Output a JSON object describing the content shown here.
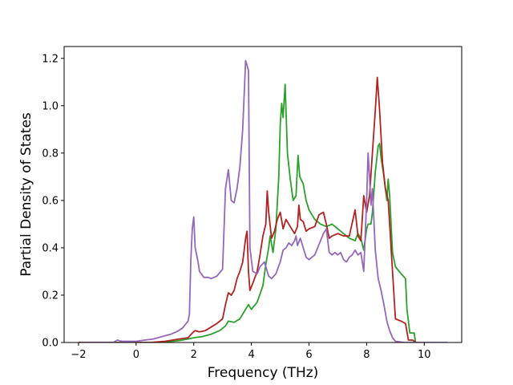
{
  "chart_data": {
    "type": "line",
    "title": "",
    "xlabel": "Frequency (THz)",
    "ylabel": "Partial Density of States",
    "xlim": [
      -2.5,
      11.3
    ],
    "ylim": [
      0,
      1.25
    ],
    "xticks": [
      -2,
      0,
      2,
      4,
      6,
      8,
      10
    ],
    "xtick_labels": [
      "−2",
      "0",
      "2",
      "4",
      "6",
      "8",
      "10"
    ],
    "yticks": [
      0.0,
      0.2,
      0.4,
      0.6,
      0.8,
      1.0,
      1.2
    ],
    "ytick_labels": [
      "0.0",
      "0.2",
      "0.4",
      "0.6",
      "0.8",
      "1.0",
      "1.2"
    ],
    "grid": false,
    "series": [
      {
        "color": "#2ca02c",
        "points": [
          [
            -2.0,
            0
          ],
          [
            0.5,
            0
          ],
          [
            1.0,
            0.002
          ],
          [
            1.5,
            0.008
          ],
          [
            1.8,
            0.015
          ],
          [
            2.0,
            0.02
          ],
          [
            2.3,
            0.025
          ],
          [
            2.6,
            0.035
          ],
          [
            2.9,
            0.05
          ],
          [
            3.1,
            0.07
          ],
          [
            3.2,
            0.09
          ],
          [
            3.4,
            0.085
          ],
          [
            3.6,
            0.1
          ],
          [
            3.8,
            0.14
          ],
          [
            3.9,
            0.16
          ],
          [
            4.0,
            0.14
          ],
          [
            4.2,
            0.17
          ],
          [
            4.4,
            0.24
          ],
          [
            4.5,
            0.33
          ],
          [
            4.6,
            0.4
          ],
          [
            4.65,
            0.45
          ],
          [
            4.75,
            0.38
          ],
          [
            4.85,
            0.48
          ],
          [
            4.95,
            0.7
          ],
          [
            5.0,
            0.92
          ],
          [
            5.05,
            1.01
          ],
          [
            5.1,
            0.95
          ],
          [
            5.17,
            1.09
          ],
          [
            5.25,
            0.8
          ],
          [
            5.35,
            0.69
          ],
          [
            5.45,
            0.6
          ],
          [
            5.55,
            0.62
          ],
          [
            5.62,
            0.79
          ],
          [
            5.68,
            0.7
          ],
          [
            5.8,
            0.67
          ],
          [
            5.9,
            0.6
          ],
          [
            6.0,
            0.56
          ],
          [
            6.2,
            0.52
          ],
          [
            6.4,
            0.5
          ],
          [
            6.6,
            0.49
          ],
          [
            6.8,
            0.5
          ],
          [
            7.0,
            0.48
          ],
          [
            7.2,
            0.46
          ],
          [
            7.4,
            0.44
          ],
          [
            7.6,
            0.43
          ],
          [
            7.7,
            0.46
          ],
          [
            7.8,
            0.44
          ],
          [
            7.9,
            0.39
          ],
          [
            8.0,
            0.48
          ],
          [
            8.05,
            0.5
          ],
          [
            8.15,
            0.5
          ],
          [
            8.2,
            0.55
          ],
          [
            8.3,
            0.72
          ],
          [
            8.4,
            0.83
          ],
          [
            8.45,
            0.84
          ],
          [
            8.5,
            0.78
          ],
          [
            8.6,
            0.7
          ],
          [
            8.7,
            0.6
          ],
          [
            8.75,
            0.69
          ],
          [
            8.8,
            0.62
          ],
          [
            8.9,
            0.38
          ],
          [
            9.0,
            0.32
          ],
          [
            9.2,
            0.29
          ],
          [
            9.35,
            0.27
          ],
          [
            9.4,
            0.14
          ],
          [
            9.5,
            0.04
          ],
          [
            9.65,
            0.04
          ],
          [
            9.7,
            0.0
          ],
          [
            9.85,
            0.0
          ]
        ]
      },
      {
        "color": "#b22222",
        "points": [
          [
            -2.0,
            0
          ],
          [
            0.5,
            0
          ],
          [
            1.0,
            0.005
          ],
          [
            1.5,
            0.015
          ],
          [
            1.8,
            0.02
          ],
          [
            1.95,
            0.04
          ],
          [
            2.05,
            0.05
          ],
          [
            2.2,
            0.045
          ],
          [
            2.4,
            0.05
          ],
          [
            2.6,
            0.065
          ],
          [
            2.8,
            0.08
          ],
          [
            3.0,
            0.1
          ],
          [
            3.1,
            0.16
          ],
          [
            3.2,
            0.21
          ],
          [
            3.3,
            0.2
          ],
          [
            3.4,
            0.22
          ],
          [
            3.5,
            0.27
          ],
          [
            3.6,
            0.3
          ],
          [
            3.7,
            0.34
          ],
          [
            3.8,
            0.44
          ],
          [
            3.85,
            0.47
          ],
          [
            3.9,
            0.3
          ],
          [
            3.95,
            0.22
          ],
          [
            4.05,
            0.25
          ],
          [
            4.2,
            0.3
          ],
          [
            4.3,
            0.37
          ],
          [
            4.4,
            0.45
          ],
          [
            4.5,
            0.5
          ],
          [
            4.55,
            0.64
          ],
          [
            4.6,
            0.55
          ],
          [
            4.7,
            0.44
          ],
          [
            4.8,
            0.47
          ],
          [
            4.9,
            0.52
          ],
          [
            5.0,
            0.55
          ],
          [
            5.1,
            0.48
          ],
          [
            5.2,
            0.52
          ],
          [
            5.3,
            0.5
          ],
          [
            5.4,
            0.48
          ],
          [
            5.5,
            0.46
          ],
          [
            5.6,
            0.49
          ],
          [
            5.65,
            0.58
          ],
          [
            5.7,
            0.52
          ],
          [
            5.8,
            0.51
          ],
          [
            5.9,
            0.47
          ],
          [
            6.0,
            0.48
          ],
          [
            6.2,
            0.49
          ],
          [
            6.35,
            0.54
          ],
          [
            6.5,
            0.55
          ],
          [
            6.6,
            0.5
          ],
          [
            6.7,
            0.44
          ],
          [
            6.8,
            0.45
          ],
          [
            7.0,
            0.46
          ],
          [
            7.2,
            0.45
          ],
          [
            7.4,
            0.45
          ],
          [
            7.6,
            0.56
          ],
          [
            7.7,
            0.45
          ],
          [
            7.8,
            0.43
          ],
          [
            7.9,
            0.62
          ],
          [
            8.0,
            0.55
          ],
          [
            8.1,
            0.62
          ],
          [
            8.2,
            0.8
          ],
          [
            8.3,
            0.98
          ],
          [
            8.37,
            1.12
          ],
          [
            8.45,
            0.98
          ],
          [
            8.55,
            0.76
          ],
          [
            8.65,
            0.65
          ],
          [
            8.75,
            0.6
          ],
          [
            8.8,
            0.5
          ],
          [
            8.9,
            0.3
          ],
          [
            9.0,
            0.1
          ],
          [
            9.2,
            0.09
          ],
          [
            9.35,
            0.08
          ],
          [
            9.45,
            0.01
          ],
          [
            9.6,
            0.01
          ],
          [
            9.7,
            0.0
          ]
        ]
      },
      {
        "color": "#9467bd",
        "points": [
          [
            -1.9,
            0
          ],
          [
            -0.8,
            0
          ],
          [
            -0.65,
            0.01
          ],
          [
            -0.5,
            0.005
          ],
          [
            0.0,
            0.005
          ],
          [
            0.3,
            0.01
          ],
          [
            0.6,
            0.015
          ],
          [
            0.9,
            0.025
          ],
          [
            1.2,
            0.035
          ],
          [
            1.4,
            0.045
          ],
          [
            1.6,
            0.06
          ],
          [
            1.8,
            0.09
          ],
          [
            1.85,
            0.12
          ],
          [
            1.9,
            0.35
          ],
          [
            1.95,
            0.48
          ],
          [
            2.0,
            0.53
          ],
          [
            2.05,
            0.4
          ],
          [
            2.15,
            0.34
          ],
          [
            2.2,
            0.3
          ],
          [
            2.35,
            0.275
          ],
          [
            2.5,
            0.275
          ],
          [
            2.6,
            0.27
          ],
          [
            2.8,
            0.28
          ],
          [
            3.0,
            0.31
          ],
          [
            3.1,
            0.65
          ],
          [
            3.2,
            0.73
          ],
          [
            3.3,
            0.6
          ],
          [
            3.4,
            0.59
          ],
          [
            3.5,
            0.65
          ],
          [
            3.6,
            0.74
          ],
          [
            3.7,
            0.9
          ],
          [
            3.8,
            1.19
          ],
          [
            3.9,
            1.15
          ],
          [
            3.95,
            0.4
          ],
          [
            4.05,
            0.3
          ],
          [
            4.2,
            0.29
          ],
          [
            4.3,
            0.32
          ],
          [
            4.45,
            0.34
          ],
          [
            4.5,
            0.32
          ],
          [
            4.6,
            0.28
          ],
          [
            4.7,
            0.27
          ],
          [
            4.85,
            0.29
          ],
          [
            5.0,
            0.34
          ],
          [
            5.1,
            0.39
          ],
          [
            5.2,
            0.4
          ],
          [
            5.3,
            0.42
          ],
          [
            5.4,
            0.41
          ],
          [
            5.5,
            0.43
          ],
          [
            5.55,
            0.45
          ],
          [
            5.6,
            0.41
          ],
          [
            5.7,
            0.44
          ],
          [
            5.8,
            0.4
          ],
          [
            5.9,
            0.36
          ],
          [
            6.0,
            0.35
          ],
          [
            6.2,
            0.37
          ],
          [
            6.3,
            0.4
          ],
          [
            6.5,
            0.46
          ],
          [
            6.6,
            0.48
          ],
          [
            6.7,
            0.38
          ],
          [
            6.8,
            0.37
          ],
          [
            6.9,
            0.38
          ],
          [
            7.0,
            0.37
          ],
          [
            7.1,
            0.38
          ],
          [
            7.2,
            0.35
          ],
          [
            7.3,
            0.34
          ],
          [
            7.4,
            0.36
          ],
          [
            7.5,
            0.37
          ],
          [
            7.6,
            0.39
          ],
          [
            7.7,
            0.37
          ],
          [
            7.8,
            0.38
          ],
          [
            7.9,
            0.3
          ],
          [
            8.0,
            0.6
          ],
          [
            8.05,
            0.8
          ],
          [
            8.1,
            0.7
          ],
          [
            8.15,
            0.58
          ],
          [
            8.2,
            0.65
          ],
          [
            8.3,
            0.39
          ],
          [
            8.4,
            0.27
          ],
          [
            8.5,
            0.22
          ],
          [
            8.6,
            0.16
          ],
          [
            8.7,
            0.09
          ],
          [
            8.8,
            0.05
          ],
          [
            8.9,
            0.02
          ],
          [
            9.0,
            0.005
          ],
          [
            9.3,
            0.0
          ],
          [
            10.8,
            0.0
          ]
        ]
      }
    ]
  }
}
